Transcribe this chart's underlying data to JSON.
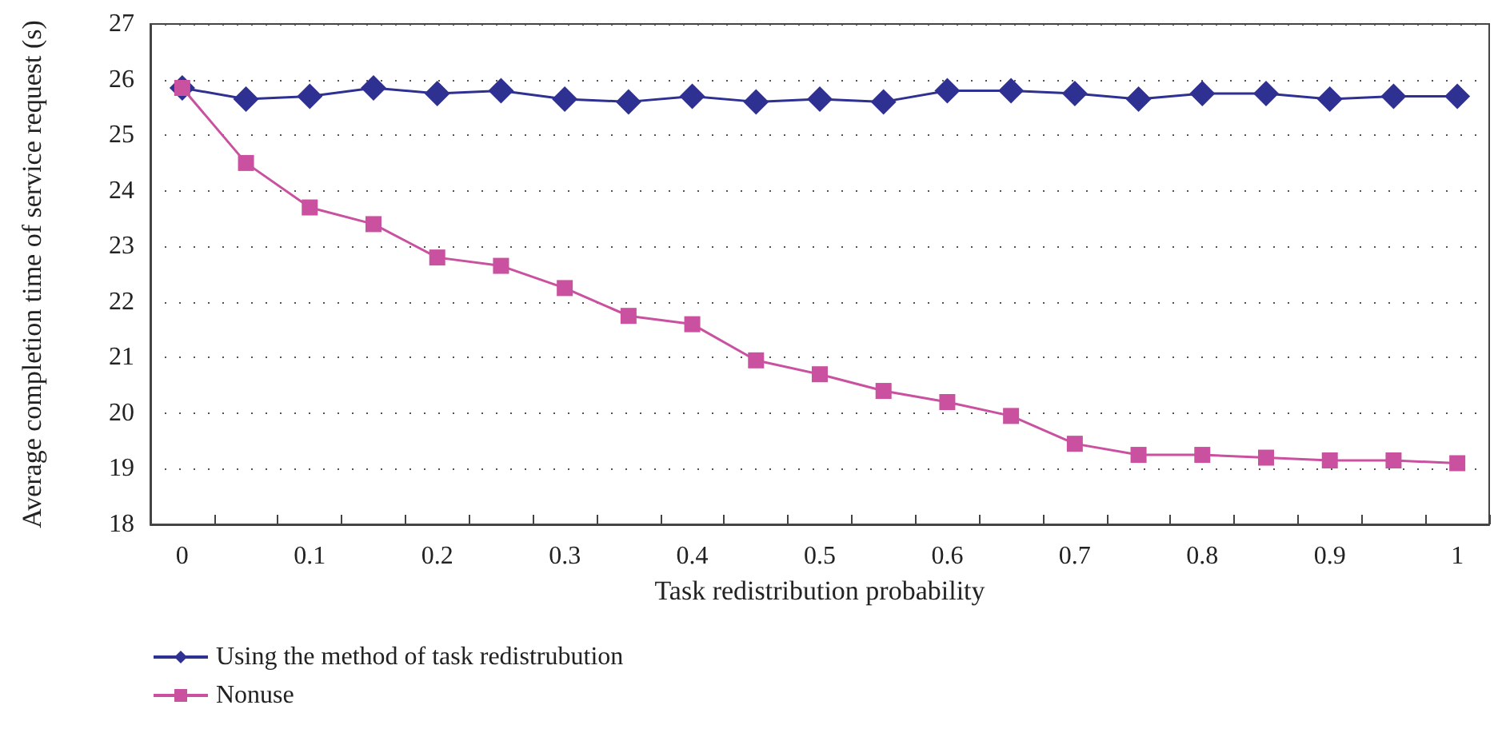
{
  "chart_data": {
    "type": "line",
    "xlabel": "Task redistribution probability",
    "ylabel": "Average completion time of service request (s)",
    "categories": [
      "0",
      null,
      "0.1",
      null,
      "0.2",
      null,
      "0.3",
      null,
      "0.4",
      null,
      "0.5",
      null,
      "0.6",
      null,
      "0.7",
      null,
      "0.8",
      null,
      "0.9",
      null,
      "1"
    ],
    "series": [
      {
        "name": "Using the method of task redistrubution",
        "color": "#2e3192",
        "marker": "diamond",
        "values": [
          25.85,
          25.65,
          25.7,
          25.85,
          25.75,
          25.8,
          25.65,
          25.6,
          25.7,
          25.6,
          25.65,
          25.6,
          25.8,
          25.8,
          25.75,
          25.65,
          25.75,
          25.75,
          25.65,
          25.7,
          25.7
        ]
      },
      {
        "name": "Nonuse",
        "color": "#c9519f",
        "marker": "square",
        "values": [
          25.85,
          24.5,
          23.7,
          23.4,
          22.8,
          22.65,
          22.25,
          21.75,
          21.6,
          20.95,
          20.7,
          20.4,
          20.2,
          19.95,
          19.45,
          19.25,
          19.25,
          19.2,
          19.15,
          19.15,
          19.1
        ]
      }
    ],
    "ylim": [
      18,
      27
    ],
    "yticks": [
      18,
      19,
      20,
      21,
      22,
      23,
      24,
      25,
      26,
      27
    ],
    "grid": "y",
    "legend": "bottom left",
    "line_style": "solid"
  }
}
